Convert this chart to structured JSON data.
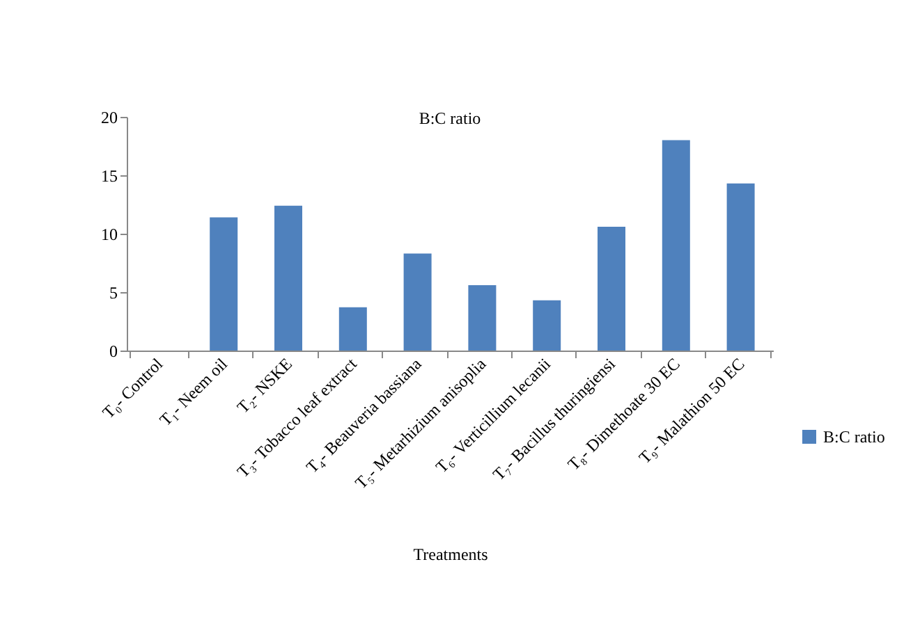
{
  "chart_data": {
    "type": "bar",
    "title": "B:C ratio",
    "xlabel": "Treatments",
    "categories": [
      "T₀- Control",
      "T₁- Neem oil",
      "T₂- NSKE",
      "T₃- Tobacco leaf extract",
      "T₄- Beauveria bassiana",
      "T₅- Metarhizium anisoplia",
      "T₆- Verticillium lecanii",
      "T₇- Bacillus thuringiensi",
      "T₈- Dimethoate 30 EC",
      "T₉- Malathion 50 EC"
    ],
    "series": [
      {
        "name": "B:C ratio",
        "color": "#4f81bd",
        "values": [
          0,
          11.4,
          12.4,
          3.7,
          8.3,
          5.6,
          4.3,
          10.6,
          18.0,
          14.3
        ]
      }
    ],
    "ylim": [
      0,
      20
    ],
    "yticks": [
      0,
      5,
      10,
      15,
      20
    ],
    "grid": false,
    "legend": "right"
  }
}
